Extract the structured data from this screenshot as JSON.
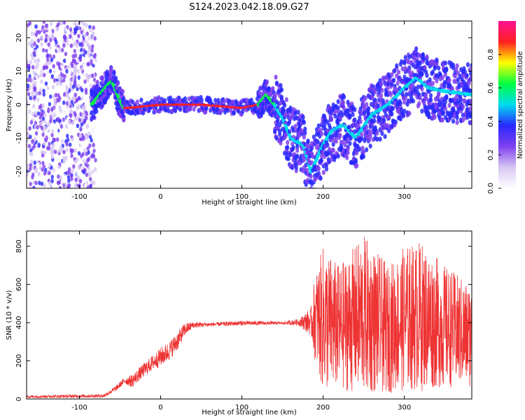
{
  "figure_title": "S124.2023.042.18.09.G27",
  "colors": {
    "snr_line": "#ee3333",
    "colorscale": [
      "#ffffff",
      "#d8c8f4",
      "#8040f0",
      "#2828ff",
      "#00ddee",
      "#00ff40",
      "#ffff00",
      "#ff2020",
      "#ff1090"
    ]
  },
  "chart_data": [
    {
      "type": "heatmap",
      "title": "S124.2023.042.18.09.G27",
      "xlabel": "Height of straight line (km)",
      "ylabel": "Frequency (Hz)",
      "xlim": [
        -165,
        383
      ],
      "ylim": [
        -25,
        25
      ],
      "x_ticks": [
        -100,
        0,
        100,
        200,
        300
      ],
      "y_ticks": [
        -20,
        -10,
        0,
        10,
        20
      ],
      "grid": false,
      "colorbar": {
        "label": "Normalized spectral amplitude",
        "range": [
          0,
          1
        ],
        "ticks": [
          "0.0",
          "0.2",
          "0.4",
          "0.6",
          "0.8"
        ],
        "position": "right"
      },
      "ridge": {
        "x": [
          -85,
          -75,
          -65,
          -60,
          -55,
          -50,
          -45,
          -40,
          -20,
          0,
          50,
          100,
          110,
          120,
          130,
          140,
          150,
          160,
          175,
          185,
          200,
          210,
          225,
          240,
          260,
          280,
          300,
          315,
          330,
          350,
          383
        ],
        "y": [
          0,
          3,
          6,
          7,
          4,
          1,
          -1,
          -1,
          -0.5,
          0,
          0,
          -1,
          -0.5,
          0,
          3,
          0,
          -4,
          -10,
          -12,
          -20,
          -12,
          -8,
          -6,
          -10,
          -3,
          0,
          5,
          8,
          5,
          4,
          3
        ]
      }
    },
    {
      "type": "line",
      "xlabel": "Height of straight line (km)",
      "ylabel": "SNR (10 * v/v)",
      "xlim": [
        -165,
        383
      ],
      "ylim": [
        0,
        880
      ],
      "x_ticks": [
        -100,
        0,
        100,
        200,
        300
      ],
      "y_ticks": [
        0,
        200,
        400,
        600,
        800
      ],
      "grid": false,
      "series": [
        {
          "envelope": {
            "x": [
              -165,
              -70,
              -55,
              -45,
              -35,
              -25,
              -10,
              0,
              10,
              20,
              30,
              40,
              60,
              100,
              150,
              170,
              185,
              190,
              200,
              220,
              250,
              280,
              300,
              320,
              350,
              383
            ],
            "low": [
              5,
              8,
              40,
              80,
              60,
              100,
              150,
              170,
              200,
              250,
              330,
              370,
              380,
              385,
              390,
              385,
              330,
              200,
              30,
              50,
              20,
              30,
              40,
              40,
              60,
              60
            ],
            "high": [
              20,
              25,
              70,
              110,
              130,
              170,
              230,
              270,
              300,
              350,
              400,
              405,
              400,
              410,
              405,
              420,
              480,
              650,
              800,
              700,
              860,
              700,
              800,
              830,
              700,
              600
            ]
          }
        }
      ]
    }
  ]
}
